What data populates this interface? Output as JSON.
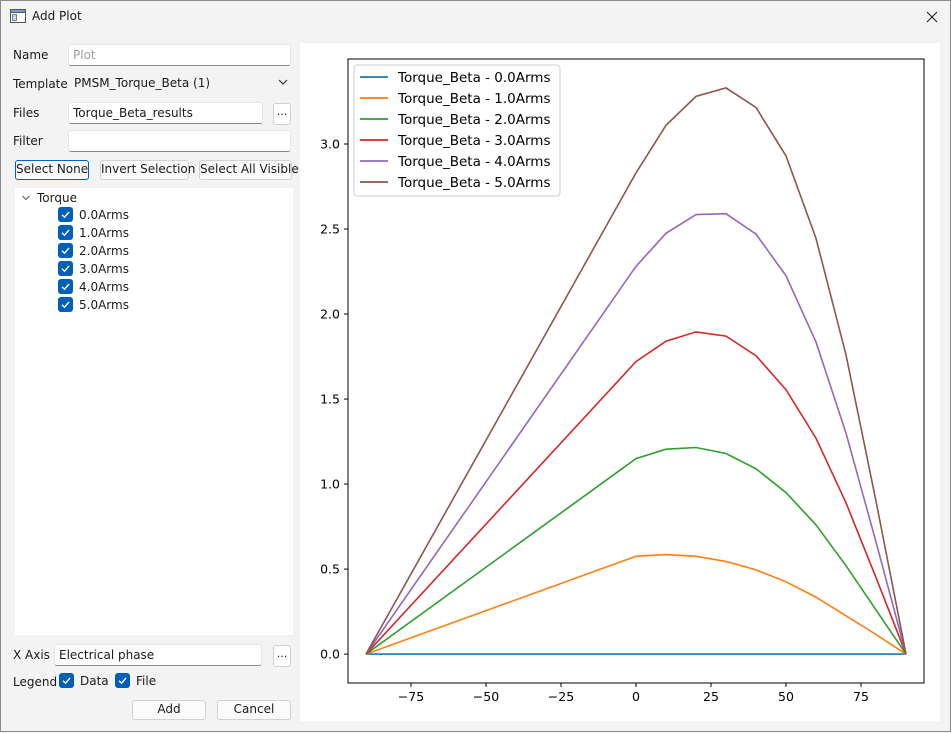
{
  "window": {
    "title": "Add Plot",
    "icons": {
      "app": "app-window-icon",
      "close": "close-icon"
    }
  },
  "form": {
    "name_label": "Name",
    "name_placeholder": "Plot",
    "template_label": "Template",
    "template_value": "PMSM_Torque_Beta (1)",
    "files_label": "Files",
    "files_value": "Torque_Beta_results",
    "browse_label": "...",
    "filter_label": "Filter",
    "filter_value": ""
  },
  "selection_buttons": {
    "select_none": "Select None",
    "invert": "Invert Selection",
    "select_all_visible": "Select All Visible"
  },
  "tree": {
    "root": "Torque",
    "items": [
      {
        "label": "0.0Arms",
        "checked": true
      },
      {
        "label": "1.0Arms",
        "checked": true
      },
      {
        "label": "2.0Arms",
        "checked": true
      },
      {
        "label": "3.0Arms",
        "checked": true
      },
      {
        "label": "4.0Arms",
        "checked": true
      },
      {
        "label": "5.0Arms",
        "checked": true
      }
    ]
  },
  "xaxis": {
    "label": "X Axis",
    "value": "Electrical phase",
    "browse_label": "..."
  },
  "legend_opts": {
    "label": "Legend",
    "data_label": "Data",
    "data_checked": true,
    "file_label": "File",
    "file_checked": true
  },
  "actions": {
    "add": "Add",
    "cancel": "Cancel"
  },
  "colors": {
    "accent": "#005fb8"
  },
  "chart_data": {
    "type": "line",
    "title": "",
    "xlabel": "",
    "ylabel": "",
    "xlim": [
      -96,
      96
    ],
    "ylim": [
      -0.17,
      3.5
    ],
    "xticks": [
      -75,
      -50,
      -25,
      0,
      25,
      50,
      75
    ],
    "xtick_labels": [
      "−75",
      "−50",
      "−25",
      "0",
      "25",
      "50",
      "75"
    ],
    "yticks": [
      0.0,
      0.5,
      1.0,
      1.5,
      2.0,
      2.5,
      3.0
    ],
    "ytick_labels": [
      "0.0",
      "0.5",
      "1.0",
      "1.5",
      "2.0",
      "2.5",
      "3.0"
    ],
    "grid": false,
    "legend_position": "top-left",
    "x": [
      -90,
      0,
      10,
      20,
      30,
      40,
      50,
      60,
      70,
      80,
      90
    ],
    "series": [
      {
        "name": "Torque_Beta - 0.0Arms",
        "color": "#1f77b4",
        "values": [
          0,
          0,
          0,
          0,
          0,
          0,
          0,
          0,
          0,
          0,
          0
        ]
      },
      {
        "name": "Torque_Beta - 1.0Arms",
        "color": "#ff7f0e",
        "values": [
          0,
          0.575,
          0.585,
          0.575,
          0.545,
          0.495,
          0.425,
          0.335,
          0.225,
          0.115,
          0
        ]
      },
      {
        "name": "Torque_Beta - 2.0Arms",
        "color": "#2ca02c",
        "values": [
          0,
          1.15,
          1.205,
          1.215,
          1.18,
          1.09,
          0.95,
          0.76,
          0.52,
          0.26,
          0
        ]
      },
      {
        "name": "Torque_Beta - 3.0Arms",
        "color": "#d62728",
        "values": [
          0,
          1.72,
          1.84,
          1.895,
          1.87,
          1.755,
          1.555,
          1.27,
          0.89,
          0.45,
          0
        ]
      },
      {
        "name": "Torque_Beta - 4.0Arms",
        "color": "#9467bd",
        "values": [
          0,
          2.28,
          2.475,
          2.585,
          2.59,
          2.47,
          2.225,
          1.835,
          1.3,
          0.66,
          0
        ]
      },
      {
        "name": "Torque_Beta - 5.0Arms",
        "color": "#8c564b",
        "values": [
          0,
          2.83,
          3.11,
          3.28,
          3.33,
          3.215,
          2.93,
          2.445,
          1.76,
          0.9,
          0
        ]
      }
    ]
  }
}
